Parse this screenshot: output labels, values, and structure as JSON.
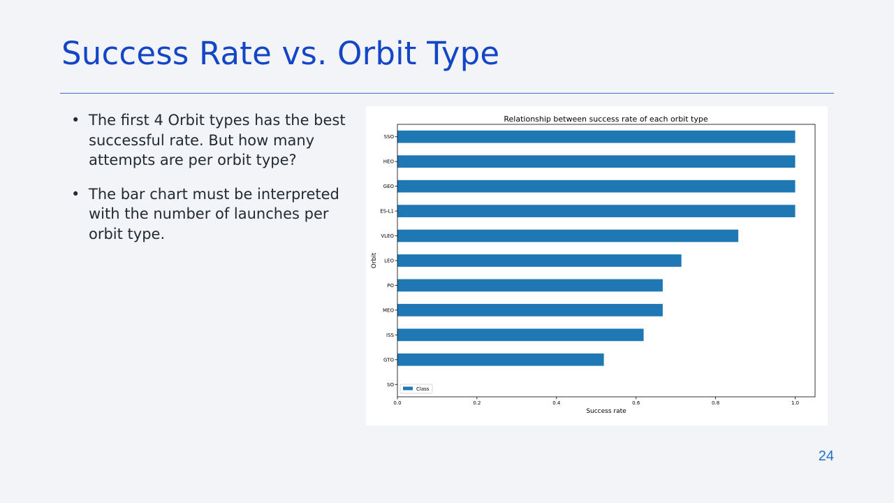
{
  "slide": {
    "title": "Success Rate vs. Orbit Type",
    "bullets": [
      "The first 4 Orbit types has the best successful rate. But how many attempts are per orbit type?",
      "The bar chart must be interpreted with the number of launches per orbit type."
    ],
    "page_number": "24"
  },
  "chart_data": {
    "type": "bar",
    "orientation": "horizontal",
    "title": "Relationship between success rate of each orbit type",
    "xlabel": "Success rate",
    "ylabel": "Orbit",
    "categories": [
      "SSO",
      "HEO",
      "GEO",
      "ES-L1",
      "VLEO",
      "LEO",
      "PO",
      "MEO",
      "ISS",
      "GTO",
      "SO"
    ],
    "series": [
      {
        "name": "Class",
        "values": [
          1.0,
          1.0,
          1.0,
          1.0,
          0.857,
          0.714,
          0.667,
          0.667,
          0.619,
          0.519,
          0.0
        ]
      }
    ],
    "xlim": [
      0,
      1.05
    ],
    "xticks": [
      "0.0",
      "0.2",
      "0.4",
      "0.6",
      "0.8",
      "1.0"
    ],
    "grid": false,
    "legend_position": "lower-left",
    "bar_color": "#1f77b4"
  }
}
